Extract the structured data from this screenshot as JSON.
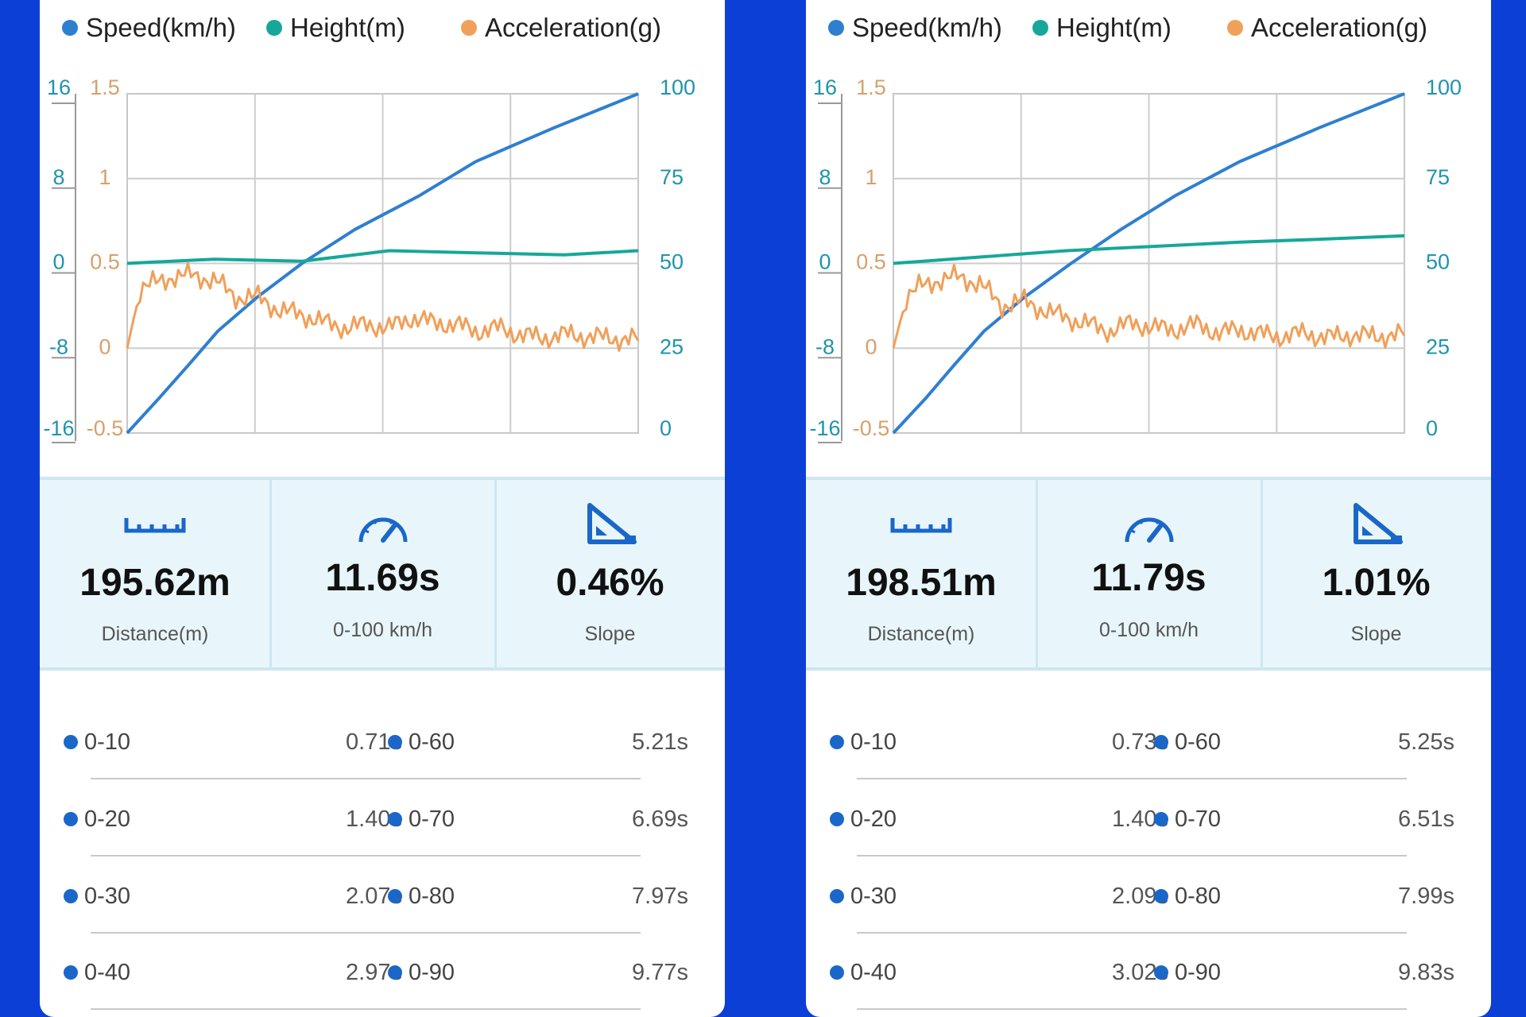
{
  "panels": [
    {
      "legend": [
        {
          "label": "Speed(km/h)",
          "color": "#2f7fd0"
        },
        {
          "label": "Height(m)",
          "color": "#17a79a"
        },
        {
          "label": "Acceleration(g)",
          "color": "#f0a05a"
        }
      ],
      "chart_data": {
        "type": "line",
        "axes": {
          "height": {
            "ticks": [
              "16",
              "8",
              "0",
              "-8",
              "-16"
            ],
            "range": [
              -16,
              16
            ],
            "color": "#1f94ac"
          },
          "acceleration": {
            "ticks": [
              "1.5",
              "1",
              "0.5",
              "0",
              "-0.5"
            ],
            "range": [
              -0.5,
              1.5
            ],
            "color": "#d6a06c"
          },
          "speed": {
            "ticks": [
              "100",
              "75",
              "50",
              "25",
              "0"
            ],
            "range": [
              0,
              100
            ],
            "color": "#1f94ac"
          }
        },
        "x_range": [
          0,
          11.69
        ],
        "series": [
          {
            "name": "Speed(km/h)",
            "axis": "speed",
            "color": "#2f7fd0",
            "x": [
              0,
              0.71,
              1.4,
              2.07,
              2.97,
              4.0,
              5.21,
              6.69,
              7.97,
              9.77,
              11.69
            ],
            "y": [
              0,
              10,
              20,
              30,
              40,
              50,
              60,
              70,
              80,
              90,
              100
            ]
          },
          {
            "name": "Height(m)",
            "axis": "height",
            "color": "#17a79a",
            "x": [
              0,
              2,
              4,
              6,
              8,
              10,
              11.69
            ],
            "y": [
              0,
              0.4,
              0.2,
              1.2,
              1.0,
              0.8,
              1.2
            ]
          },
          {
            "name": "Acceleration(g)",
            "axis": "acceleration",
            "color": "#f0a05a",
            "x": [
              0,
              0.3,
              0.6,
              1,
              1.5,
              2,
              2.5,
              3,
              3.5,
              4,
              4.5,
              5,
              5.5,
              6,
              6.5,
              7,
              7.5,
              8,
              8.5,
              9,
              9.5,
              10,
              10.5,
              11,
              11.69
            ],
            "y": [
              0.0,
              0.35,
              0.38,
              0.42,
              0.43,
              0.4,
              0.3,
              0.3,
              0.22,
              0.2,
              0.15,
              0.12,
              0.14,
              0.12,
              0.18,
              0.15,
              0.14,
              0.1,
              0.12,
              0.08,
              0.06,
              0.08,
              0.07,
              0.06,
              0.05
            ]
          }
        ]
      },
      "stats": [
        {
          "icon": "ruler-icon",
          "value": "195.62m",
          "label": "Distance(m)"
        },
        {
          "icon": "speedometer-icon",
          "value": "11.69s",
          "label": "0-100 km/h"
        },
        {
          "icon": "slope-icon",
          "value": "0.46%",
          "label": "Slope"
        }
      ],
      "splits": [
        {
          "l": "0-10",
          "lt": "0.71s",
          "r": "0-60",
          "rt": "5.21s"
        },
        {
          "l": "0-20",
          "lt": "1.40s",
          "r": "0-70",
          "rt": "6.69s"
        },
        {
          "l": "0-30",
          "lt": "2.07s",
          "r": "0-80",
          "rt": "7.97s"
        },
        {
          "l": "0-40",
          "lt": "2.97s",
          "r": "0-90",
          "rt": "9.77s"
        }
      ]
    },
    {
      "legend": [
        {
          "label": "Speed(km/h)",
          "color": "#2f7fd0"
        },
        {
          "label": "Height(m)",
          "color": "#17a79a"
        },
        {
          "label": "Acceleration(g)",
          "color": "#f0a05a"
        }
      ],
      "chart_data": {
        "type": "line",
        "axes": {
          "height": {
            "ticks": [
              "16",
              "8",
              "0",
              "-8",
              "-16"
            ],
            "range": [
              -16,
              16
            ],
            "color": "#1f94ac"
          },
          "acceleration": {
            "ticks": [
              "1.5",
              "1",
              "0.5",
              "0",
              "-0.5"
            ],
            "range": [
              -0.5,
              1.5
            ],
            "color": "#d6a06c"
          },
          "speed": {
            "ticks": [
              "100",
              "75",
              "50",
              "25",
              "0"
            ],
            "range": [
              0,
              100
            ],
            "color": "#1f94ac"
          }
        },
        "x_range": [
          0,
          11.79
        ],
        "series": [
          {
            "name": "Speed(km/h)",
            "axis": "speed",
            "color": "#2f7fd0",
            "x": [
              0,
              0.73,
              1.4,
              2.09,
              3.02,
              4.1,
              5.25,
              6.51,
              7.99,
              9.83,
              11.79
            ],
            "y": [
              0,
              10,
              20,
              30,
              40,
              50,
              60,
              70,
              80,
              90,
              100
            ]
          },
          {
            "name": "Height(m)",
            "axis": "height",
            "color": "#17a79a",
            "x": [
              0,
              2,
              4,
              6,
              8,
              10,
              11.79
            ],
            "y": [
              0,
              0.6,
              1.2,
              1.6,
              2.0,
              2.3,
              2.6
            ]
          },
          {
            "name": "Acceleration(g)",
            "axis": "acceleration",
            "color": "#f0a05a",
            "x": [
              0,
              0.3,
              0.6,
              1,
              1.5,
              2,
              2.5,
              3,
              3.5,
              4,
              4.5,
              5,
              5.5,
              6,
              6.5,
              7,
              7.5,
              8,
              8.5,
              9,
              9.5,
              10,
              10.5,
              11,
              11.79
            ],
            "y": [
              0.0,
              0.3,
              0.36,
              0.4,
              0.42,
              0.38,
              0.25,
              0.28,
              0.22,
              0.18,
              0.14,
              0.1,
              0.15,
              0.12,
              0.11,
              0.14,
              0.09,
              0.11,
              0.08,
              0.07,
              0.09,
              0.06,
              0.08,
              0.07,
              0.08
            ]
          }
        ]
      },
      "stats": [
        {
          "icon": "ruler-icon",
          "value": "198.51m",
          "label": "Distance(m)"
        },
        {
          "icon": "speedometer-icon",
          "value": "11.79s",
          "label": "0-100 km/h"
        },
        {
          "icon": "slope-icon",
          "value": "1.01%",
          "label": "Slope"
        }
      ],
      "splits": [
        {
          "l": "0-10",
          "lt": "0.73s",
          "r": "0-60",
          "rt": "5.25s"
        },
        {
          "l": "0-20",
          "lt": "1.40s",
          "r": "0-70",
          "rt": "6.51s"
        },
        {
          "l": "0-30",
          "lt": "2.09s",
          "r": "0-80",
          "rt": "7.99s"
        },
        {
          "l": "0-40",
          "lt": "3.02s",
          "r": "0-90",
          "rt": "9.83s"
        }
      ]
    }
  ]
}
